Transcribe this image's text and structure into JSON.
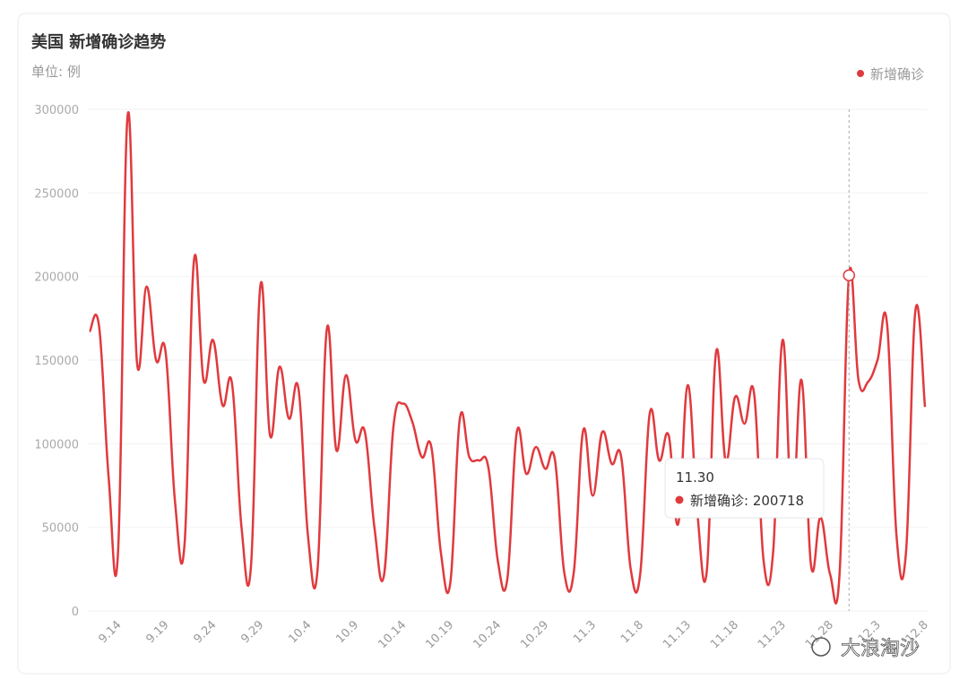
{
  "chart_data": {
    "type": "line",
    "title": "美国 新增确诊趋势",
    "subtitle": "单位: 例",
    "categories": [
      null,
      null,
      null,
      "9.14",
      null,
      null,
      null,
      null,
      "9.19",
      null,
      null,
      null,
      null,
      "9.24",
      null,
      null,
      null,
      null,
      "9.29",
      null,
      null,
      null,
      null,
      "10.4",
      null,
      null,
      null,
      null,
      "10.9",
      null,
      null,
      null,
      null,
      "10.14",
      null,
      null,
      null,
      null,
      "10.19",
      null,
      null,
      null,
      null,
      "10.24",
      null,
      null,
      null,
      null,
      "10.29",
      null,
      null,
      null,
      null,
      "11.3",
      null,
      null,
      null,
      null,
      "11.8",
      null,
      null,
      null,
      null,
      "11.13",
      null,
      null,
      null,
      null,
      "11.18",
      null,
      null,
      null,
      null,
      "11.23",
      null,
      null,
      null,
      null,
      "11.28",
      null,
      null,
      null,
      null,
      "12.3",
      null,
      null,
      null,
      null,
      "12.8"
    ],
    "series": [
      {
        "name": "新增确诊",
        "color": "#e03a3e",
        "values": [
          167000,
          170000,
          80000,
          36000,
          296000,
          148000,
          194000,
          150000,
          155000,
          65000,
          40000,
          210000,
          138000,
          162000,
          123000,
          136000,
          50000,
          27000,
          195000,
          105000,
          146000,
          115000,
          133000,
          45000,
          24000,
          169000,
          96000,
          141000,
          102000,
          107000,
          50000,
          21000,
          110000,
          124000,
          113000,
          92000,
          98000,
          35000,
          17000,
          115000,
          92000,
          90000,
          86000,
          30000,
          19000,
          107000,
          82000,
          98000,
          85000,
          91000,
          23000,
          23000,
          108000,
          69000,
          107000,
          88000,
          92000,
          25000,
          22000,
          118000,
          90000,
          105000,
          52000,
          135000,
          60000,
          23000,
          155000,
          90000,
          128000,
          112000,
          130000,
          30000,
          35000,
          162000,
          60000,
          138000,
          27000,
          56000,
          22000,
          22000,
          200718,
          138000,
          137000,
          150000,
          172000,
          45000,
          35000,
          180000,
          122000
        ]
      }
    ],
    "ylim": [
      0,
      300000
    ],
    "yticks": [
      0,
      50000,
      100000,
      150000,
      200000,
      250000,
      300000
    ],
    "grid": true,
    "legend": "top-right",
    "tooltip": {
      "title": "11.30",
      "text": "新增确诊: 200718",
      "index": 80
    },
    "watermark": "大浪淘沙"
  }
}
